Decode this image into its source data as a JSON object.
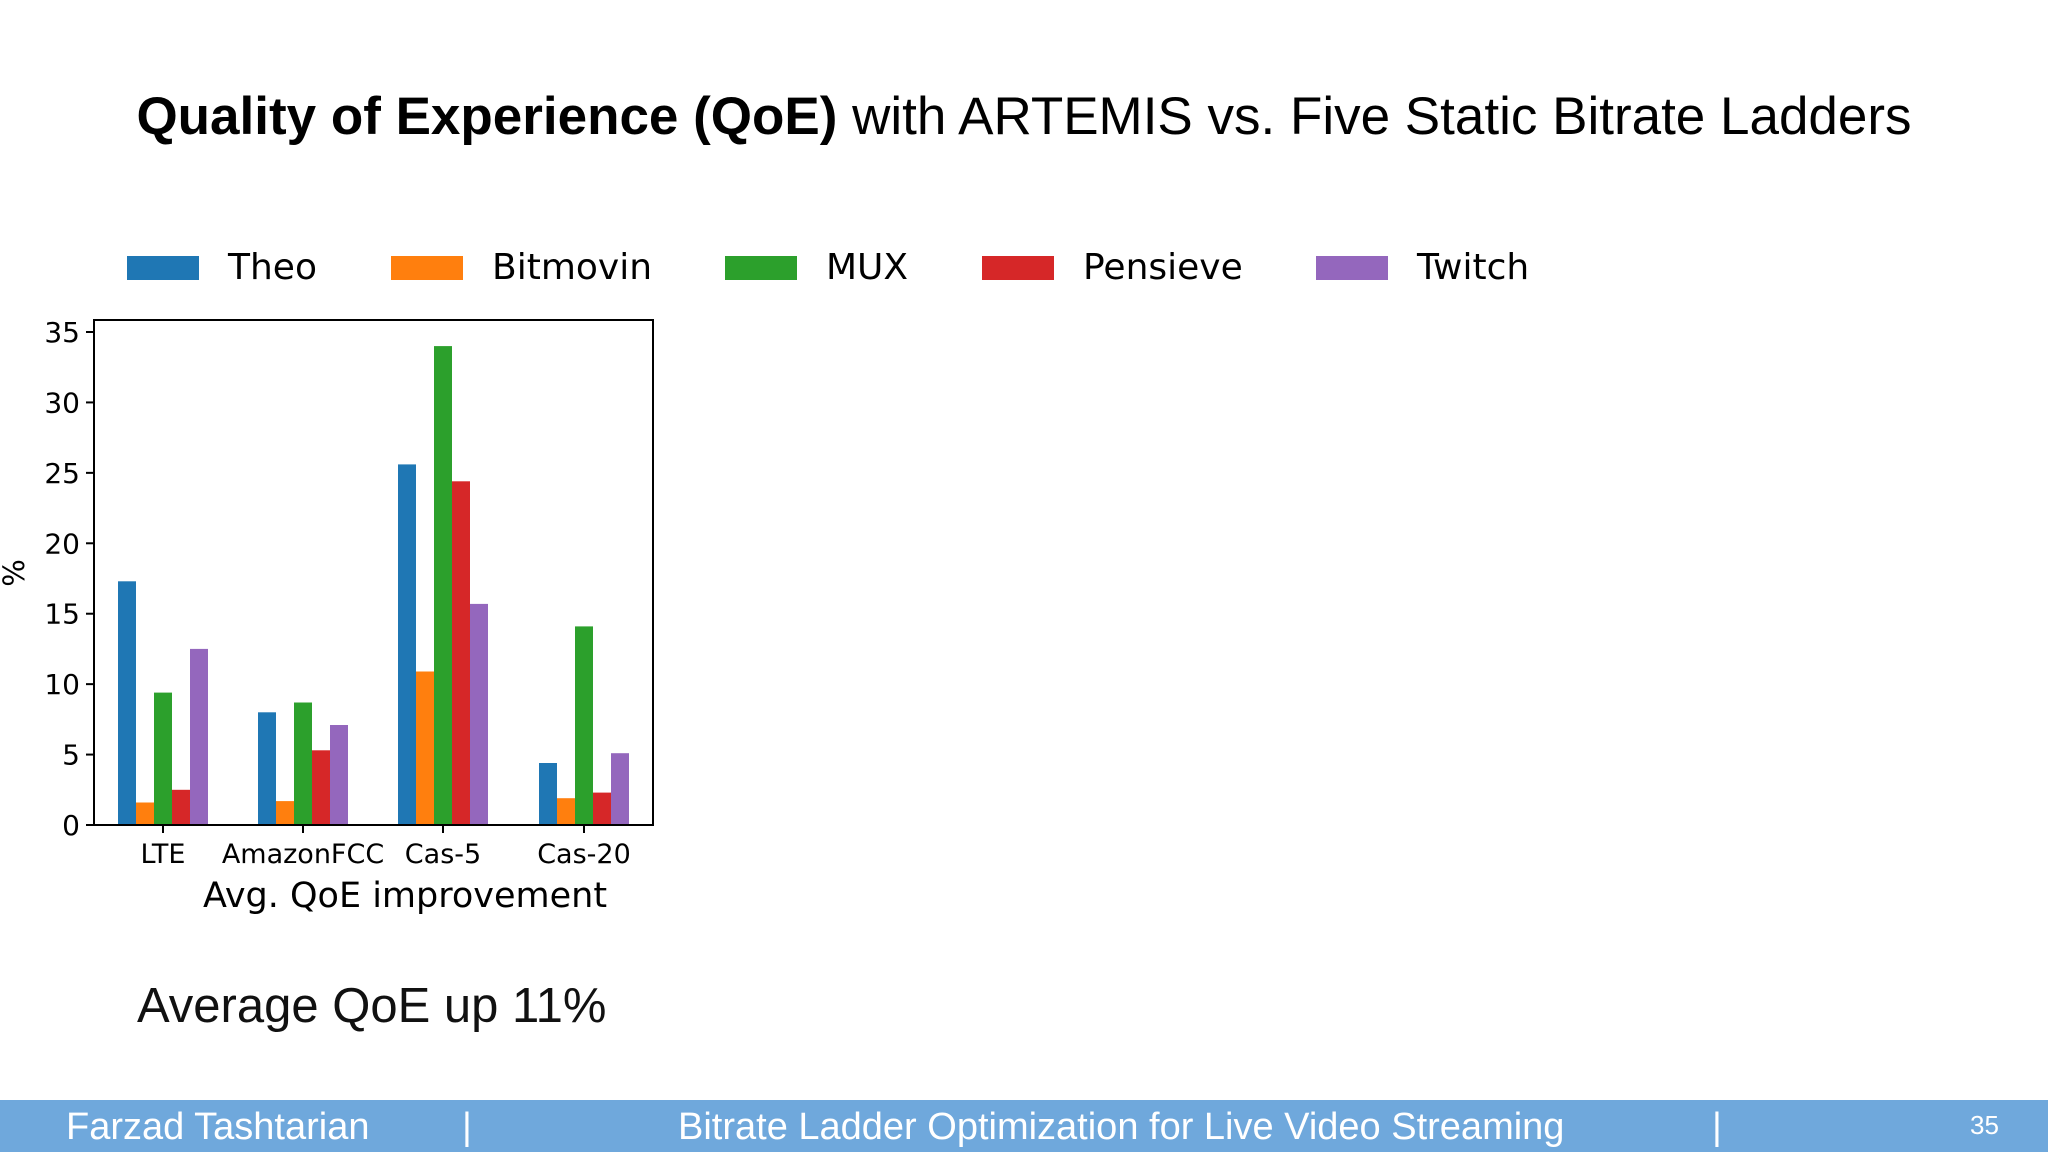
{
  "slide": {
    "title_bold": "Quality of Experience (QoE)",
    "title_rest": " with ARTEMIS vs. Five Static Bitrate Ladders",
    "summary": "Average QoE up 11%"
  },
  "footer": {
    "author": "Farzad Tashtarian",
    "separator": "|",
    "talk_title": "Bitrate Ladder Optimization for Live Video Streaming",
    "page_number": "35"
  },
  "chart_data": {
    "type": "bar",
    "categories": [
      "LTE",
      "AmazonFCC",
      "Cas-5",
      "Cas-20"
    ],
    "series": [
      {
        "name": "Theo",
        "color": "#1f77b4",
        "values": [
          17.3,
          8.0,
          25.6,
          4.4
        ]
      },
      {
        "name": "Bitmovin",
        "color": "#ff7f0e",
        "values": [
          1.6,
          1.7,
          10.9,
          1.9
        ]
      },
      {
        "name": "MUX",
        "color": "#2ca02c",
        "values": [
          9.4,
          8.7,
          34.0,
          14.1
        ]
      },
      {
        "name": "Pensieve",
        "color": "#d62728",
        "values": [
          2.5,
          5.3,
          24.4,
          2.3
        ]
      },
      {
        "name": "Twitch",
        "color": "#9467bd",
        "values": [
          12.5,
          7.1,
          15.7,
          5.1
        ]
      }
    ],
    "xlabel": "Avg. QoE improvement",
    "ylabel": "%",
    "ylim": [
      0,
      35
    ],
    "yticks": [
      0,
      5,
      10,
      15,
      20,
      25,
      30,
      35
    ],
    "legend_position": "top",
    "grid": false
  }
}
